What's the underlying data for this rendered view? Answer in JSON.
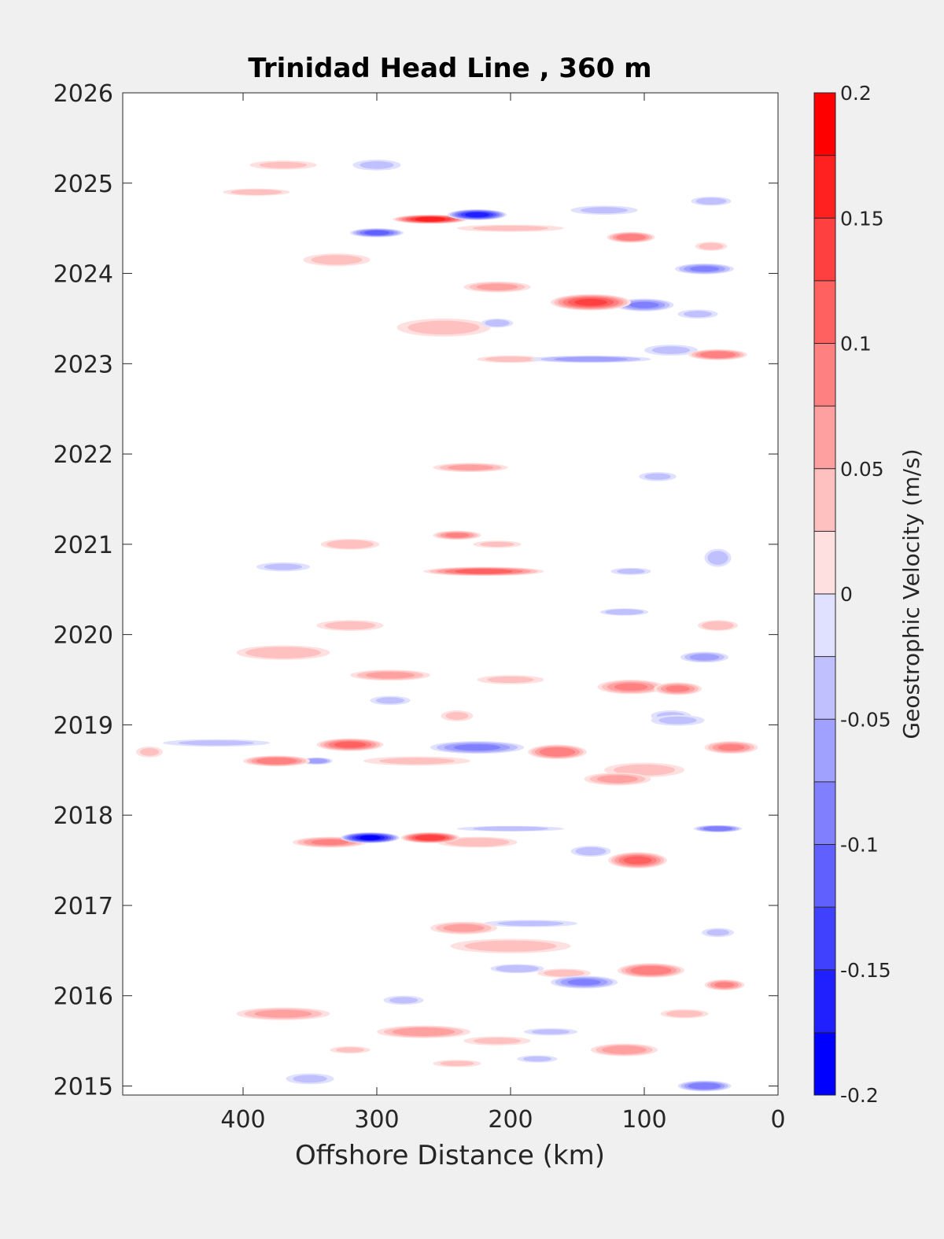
{
  "chart_data": {
    "type": "heatmap",
    "title": "Trinidad Head Line , 360 m",
    "xlabel": "Offshore Distance (km)",
    "ylabel": "",
    "xlim": [
      490,
      0
    ],
    "ylim": [
      2014.9,
      2026
    ],
    "x_ticks": [
      400,
      300,
      200,
      100,
      0
    ],
    "x_tick_labels": [
      "400",
      "300",
      "200",
      "100",
      "0"
    ],
    "y_ticks": [
      2015,
      2016,
      2017,
      2018,
      2019,
      2020,
      2021,
      2022,
      2023,
      2024,
      2025,
      2026
    ],
    "y_tick_labels": [
      "2015",
      "2016",
      "2017",
      "2018",
      "2019",
      "2020",
      "2021",
      "2022",
      "2023",
      "2024",
      "2025",
      "2026"
    ],
    "grid": false,
    "colorbar": {
      "label": "Geostrophic Velocity (m/s)",
      "range": [
        -0.2,
        0.2
      ],
      "levels": [
        -0.2,
        -0.175,
        -0.15,
        -0.125,
        -0.1,
        -0.075,
        -0.05,
        -0.025,
        0,
        0.025,
        0.05,
        0.075,
        0.1,
        0.125,
        0.15,
        0.175,
        0.2
      ],
      "tick_values": [
        0.2,
        0.15,
        0.1,
        0.05,
        0,
        -0.05,
        -0.1,
        -0.15,
        -0.2
      ],
      "tick_labels": [
        "0.2",
        "0.15",
        "0.1",
        "0.05",
        "0",
        "-0.05",
        "-0.1",
        "-0.15",
        "-0.2"
      ],
      "colors_low_to_high": [
        "#0000ff",
        "#2020ff",
        "#4040ff",
        "#6060ff",
        "#8080ff",
        "#a0a0ff",
        "#c0c0ff",
        "#e0e0ff",
        "#ffffff",
        "#ffffff",
        "#ffe0e0",
        "#ffc0c0",
        "#ffa0a0",
        "#ff8080",
        "#ff6060",
        "#ff4040",
        "#ff2020",
        "#ff0000"
      ]
    },
    "data_gaps": [
      {
        "from": 2022.05,
        "to": 2023.0
      },
      {
        "from": 2020.55,
        "to": 2020.68
      },
      {
        "from": 2018.25,
        "to": 2018.22
      }
    ],
    "features": [
      {
        "x": 220,
        "y": 2020.7,
        "value": 0.13,
        "sx": 45,
        "sy": 0.05
      },
      {
        "x": 240,
        "y": 2021.1,
        "value": 0.1,
        "sx": 18,
        "sy": 0.05
      },
      {
        "x": 320,
        "y": 2021.0,
        "value": 0.07,
        "sx": 22,
        "sy": 0.06
      },
      {
        "x": 210,
        "y": 2021.0,
        "value": 0.05,
        "sx": 18,
        "sy": 0.04
      },
      {
        "x": 230,
        "y": 2021.85,
        "value": 0.08,
        "sx": 28,
        "sy": 0.05
      },
      {
        "x": 370,
        "y": 2020.75,
        "value": -0.05,
        "sx": 20,
        "sy": 0.05
      },
      {
        "x": 110,
        "y": 2020.7,
        "value": -0.05,
        "sx": 15,
        "sy": 0.04
      },
      {
        "x": 90,
        "y": 2021.75,
        "value": -0.05,
        "sx": 14,
        "sy": 0.05
      },
      {
        "x": 45,
        "y": 2020.85,
        "value": -0.06,
        "sx": 10,
        "sy": 0.1
      },
      {
        "x": 305,
        "y": 2017.75,
        "value": -0.2,
        "sx": 22,
        "sy": 0.06
      },
      {
        "x": 260,
        "y": 2017.75,
        "value": 0.17,
        "sx": 22,
        "sy": 0.06
      },
      {
        "x": 335,
        "y": 2017.7,
        "value": 0.1,
        "sx": 28,
        "sy": 0.06
      },
      {
        "x": 225,
        "y": 2017.7,
        "value": 0.07,
        "sx": 30,
        "sy": 0.06
      },
      {
        "x": 105,
        "y": 2017.5,
        "value": 0.13,
        "sx": 22,
        "sy": 0.09
      },
      {
        "x": 45,
        "y": 2017.85,
        "value": -0.12,
        "sx": 18,
        "sy": 0.04
      },
      {
        "x": 200,
        "y": 2017.85,
        "value": -0.05,
        "sx": 40,
        "sy": 0.03
      },
      {
        "x": 140,
        "y": 2017.6,
        "value": -0.06,
        "sx": 15,
        "sy": 0.06
      },
      {
        "x": 260,
        "y": 2024.6,
        "value": 0.18,
        "sx": 28,
        "sy": 0.05
      },
      {
        "x": 225,
        "y": 2024.65,
        "value": -0.18,
        "sx": 22,
        "sy": 0.06
      },
      {
        "x": 300,
        "y": 2024.45,
        "value": -0.13,
        "sx": 20,
        "sy": 0.05
      },
      {
        "x": 140,
        "y": 2023.68,
        "value": 0.15,
        "sx": 30,
        "sy": 0.09
      },
      {
        "x": 110,
        "y": 2024.4,
        "value": 0.12,
        "sx": 18,
        "sy": 0.06
      },
      {
        "x": 210,
        "y": 2023.85,
        "value": 0.08,
        "sx": 25,
        "sy": 0.06
      },
      {
        "x": 100,
        "y": 2023.65,
        "value": -0.1,
        "sx": 22,
        "sy": 0.07
      },
      {
        "x": 60,
        "y": 2023.55,
        "value": -0.05,
        "sx": 15,
        "sy": 0.05
      },
      {
        "x": 55,
        "y": 2024.05,
        "value": -0.1,
        "sx": 22,
        "sy": 0.06
      },
      {
        "x": 45,
        "y": 2023.1,
        "value": 0.12,
        "sx": 22,
        "sy": 0.06
      },
      {
        "x": 140,
        "y": 2023.05,
        "value": -0.08,
        "sx": 45,
        "sy": 0.04
      },
      {
        "x": 200,
        "y": 2023.05,
        "value": 0.06,
        "sx": 25,
        "sy": 0.04
      },
      {
        "x": 80,
        "y": 2023.15,
        "value": -0.05,
        "sx": 20,
        "sy": 0.06
      },
      {
        "x": 250,
        "y": 2023.4,
        "value": 0.06,
        "sx": 35,
        "sy": 0.1
      },
      {
        "x": 210,
        "y": 2023.45,
        "value": -0.06,
        "sx": 12,
        "sy": 0.05
      },
      {
        "x": 330,
        "y": 2024.15,
        "value": 0.06,
        "sx": 25,
        "sy": 0.07
      },
      {
        "x": 370,
        "y": 2025.2,
        "value": 0.05,
        "sx": 25,
        "sy": 0.05
      },
      {
        "x": 300,
        "y": 2025.2,
        "value": -0.05,
        "sx": 18,
        "sy": 0.06
      },
      {
        "x": 390,
        "y": 2024.9,
        "value": 0.06,
        "sx": 25,
        "sy": 0.04
      },
      {
        "x": 50,
        "y": 2024.8,
        "value": -0.06,
        "sx": 15,
        "sy": 0.05
      },
      {
        "x": 50,
        "y": 2024.3,
        "value": 0.06,
        "sx": 12,
        "sy": 0.05
      },
      {
        "x": 200,
        "y": 2024.5,
        "value": 0.05,
        "sx": 40,
        "sy": 0.04
      },
      {
        "x": 130,
        "y": 2024.7,
        "value": -0.05,
        "sx": 25,
        "sy": 0.05
      },
      {
        "x": 320,
        "y": 2018.78,
        "value": 0.13,
        "sx": 25,
        "sy": 0.07
      },
      {
        "x": 375,
        "y": 2018.6,
        "value": 0.12,
        "sx": 25,
        "sy": 0.06
      },
      {
        "x": 345,
        "y": 2018.6,
        "value": -0.09,
        "sx": 12,
        "sy": 0.04
      },
      {
        "x": 225,
        "y": 2018.75,
        "value": -0.1,
        "sx": 35,
        "sy": 0.07
      },
      {
        "x": 165,
        "y": 2018.7,
        "value": 0.12,
        "sx": 22,
        "sy": 0.08
      },
      {
        "x": 35,
        "y": 2018.75,
        "value": 0.1,
        "sx": 20,
        "sy": 0.07
      },
      {
        "x": 270,
        "y": 2018.6,
        "value": 0.05,
        "sx": 40,
        "sy": 0.05
      },
      {
        "x": 120,
        "y": 2018.4,
        "value": 0.08,
        "sx": 25,
        "sy": 0.07
      },
      {
        "x": 420,
        "y": 2018.8,
        "value": -0.05,
        "sx": 40,
        "sy": 0.04
      },
      {
        "x": 470,
        "y": 2018.7,
        "value": 0.05,
        "sx": 10,
        "sy": 0.06
      },
      {
        "x": 100,
        "y": 2018.5,
        "value": 0.06,
        "sx": 30,
        "sy": 0.08
      },
      {
        "x": 80,
        "y": 2019.1,
        "value": -0.05,
        "sx": 15,
        "sy": 0.06
      },
      {
        "x": 110,
        "y": 2019.42,
        "value": 0.1,
        "sx": 25,
        "sy": 0.08
      },
      {
        "x": 75,
        "y": 2019.4,
        "value": 0.1,
        "sx": 18,
        "sy": 0.07
      },
      {
        "x": 290,
        "y": 2019.55,
        "value": 0.08,
        "sx": 30,
        "sy": 0.06
      },
      {
        "x": 370,
        "y": 2019.8,
        "value": 0.07,
        "sx": 35,
        "sy": 0.08
      },
      {
        "x": 320,
        "y": 2020.1,
        "value": 0.06,
        "sx": 25,
        "sy": 0.06
      },
      {
        "x": 55,
        "y": 2019.75,
        "value": -0.08,
        "sx": 18,
        "sy": 0.06
      },
      {
        "x": 45,
        "y": 2020.1,
        "value": 0.07,
        "sx": 15,
        "sy": 0.06
      },
      {
        "x": 115,
        "y": 2020.25,
        "value": -0.07,
        "sx": 18,
        "sy": 0.04
      },
      {
        "x": 200,
        "y": 2019.5,
        "value": 0.05,
        "sx": 25,
        "sy": 0.05
      },
      {
        "x": 290,
        "y": 2019.27,
        "value": -0.05,
        "sx": 15,
        "sy": 0.05
      },
      {
        "x": 240,
        "y": 2019.1,
        "value": 0.05,
        "sx": 12,
        "sy": 0.06
      },
      {
        "x": 75,
        "y": 2019.05,
        "value": -0.05,
        "sx": 20,
        "sy": 0.06
      },
      {
        "x": 235,
        "y": 2016.75,
        "value": 0.08,
        "sx": 25,
        "sy": 0.07
      },
      {
        "x": 200,
        "y": 2016.55,
        "value": 0.06,
        "sx": 45,
        "sy": 0.08
      },
      {
        "x": 95,
        "y": 2016.28,
        "value": 0.12,
        "sx": 25,
        "sy": 0.08
      },
      {
        "x": 40,
        "y": 2016.12,
        "value": 0.1,
        "sx": 15,
        "sy": 0.06
      },
      {
        "x": 145,
        "y": 2016.15,
        "value": -0.1,
        "sx": 25,
        "sy": 0.07
      },
      {
        "x": 160,
        "y": 2016.25,
        "value": 0.06,
        "sx": 20,
        "sy": 0.05
      },
      {
        "x": 195,
        "y": 2016.3,
        "value": -0.07,
        "sx": 20,
        "sy": 0.05
      },
      {
        "x": 185,
        "y": 2016.8,
        "value": -0.05,
        "sx": 35,
        "sy": 0.04
      },
      {
        "x": 45,
        "y": 2016.7,
        "value": -0.05,
        "sx": 12,
        "sy": 0.05
      },
      {
        "x": 370,
        "y": 2015.8,
        "value": 0.08,
        "sx": 35,
        "sy": 0.07
      },
      {
        "x": 265,
        "y": 2015.6,
        "value": 0.09,
        "sx": 35,
        "sy": 0.07
      },
      {
        "x": 210,
        "y": 2015.5,
        "value": 0.05,
        "sx": 25,
        "sy": 0.05
      },
      {
        "x": 115,
        "y": 2015.4,
        "value": 0.09,
        "sx": 25,
        "sy": 0.07
      },
      {
        "x": 70,
        "y": 2015.8,
        "value": 0.06,
        "sx": 18,
        "sy": 0.05
      },
      {
        "x": 55,
        "y": 2015.0,
        "value": -0.12,
        "sx": 20,
        "sy": 0.06
      },
      {
        "x": 350,
        "y": 2015.08,
        "value": -0.05,
        "sx": 18,
        "sy": 0.06
      },
      {
        "x": 170,
        "y": 2015.6,
        "value": -0.05,
        "sx": 20,
        "sy": 0.04
      },
      {
        "x": 280,
        "y": 2015.95,
        "value": -0.05,
        "sx": 15,
        "sy": 0.05
      },
      {
        "x": 320,
        "y": 2015.4,
        "value": 0.05,
        "sx": 15,
        "sy": 0.04
      },
      {
        "x": 240,
        "y": 2015.25,
        "value": 0.05,
        "sx": 18,
        "sy": 0.04
      },
      {
        "x": 180,
        "y": 2015.3,
        "value": -0.05,
        "sx": 15,
        "sy": 0.04
      }
    ]
  }
}
